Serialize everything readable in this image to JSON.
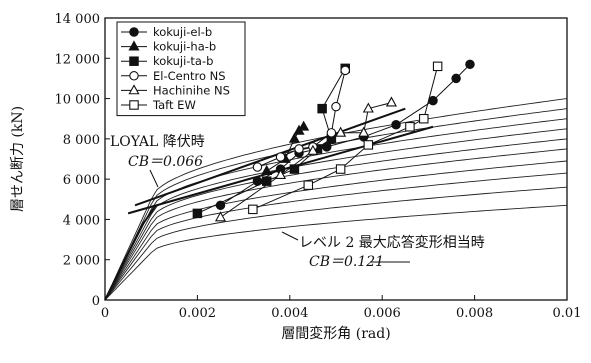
{
  "chart_data": {
    "type": "line",
    "xlabel": "層間変形角 (rad)",
    "ylabel": "層せん断力 (kN)",
    "xlim": [
      0,
      0.01
    ],
    "ylim": [
      0,
      14000
    ],
    "x_ticks": [
      0,
      0.002,
      0.004,
      0.006,
      0.008,
      0.01
    ],
    "x_tick_labels": [
      "0",
      "0.002",
      "0.004",
      "0.006",
      "0.008",
      "0.01"
    ],
    "y_ticks": [
      0,
      2000,
      4000,
      6000,
      8000,
      10000,
      12000,
      14000
    ],
    "y_tick_labels": [
      "0",
      "2 000",
      "4 000",
      "6 000",
      "8 000",
      "10 000",
      "12 000",
      "14 000"
    ],
    "legend_position": "top-left",
    "series": [
      {
        "name": "kokuji-el-b",
        "marker": "circle-filled",
        "points": [
          [
            0.0025,
            4700
          ],
          [
            0.0033,
            5900
          ],
          [
            0.0038,
            6500
          ],
          [
            0.0042,
            7300
          ],
          [
            0.0048,
            7600
          ],
          [
            0.0056,
            8100
          ],
          [
            0.0063,
            8700
          ],
          [
            0.0071,
            9900
          ],
          [
            0.0076,
            11000
          ],
          [
            0.0079,
            11700
          ]
        ]
      },
      {
        "name": "kokuji-ha-b",
        "marker": "triangle-filled",
        "points": [
          [
            0.0035,
            6400
          ],
          [
            0.0039,
            7000
          ],
          [
            0.0041,
            8000
          ],
          [
            0.0042,
            8400
          ],
          [
            0.0043,
            8600
          ]
        ]
      },
      {
        "name": "kokuji-ta-b",
        "marker": "square-filled",
        "points": [
          [
            0.002,
            4300
          ],
          [
            0.0035,
            5900
          ],
          [
            0.0041,
            6500
          ],
          [
            0.0046,
            7500
          ],
          [
            0.0049,
            8000
          ],
          [
            0.0047,
            9500
          ],
          [
            0.0052,
            11500
          ]
        ]
      },
      {
        "name": "El-Centro NS",
        "marker": "circle-open",
        "points": [
          [
            0.0033,
            6600
          ],
          [
            0.0038,
            7100
          ],
          [
            0.0042,
            7500
          ],
          [
            0.0045,
            7600
          ],
          [
            0.0049,
            8300
          ],
          [
            0.005,
            9600
          ],
          [
            0.0052,
            11400
          ]
        ]
      },
      {
        "name": "Hachinihe NS",
        "marker": "triangle-open",
        "points": [
          [
            0.0025,
            4100
          ],
          [
            0.0038,
            6200
          ],
          [
            0.0045,
            7400
          ],
          [
            0.0051,
            8300
          ],
          [
            0.0056,
            8300
          ],
          [
            0.0057,
            9500
          ],
          [
            0.0062,
            9800
          ]
        ]
      },
      {
        "name": "Taft EW",
        "marker": "square-open",
        "points": [
          [
            0.0032,
            4500
          ],
          [
            0.0044,
            5700
          ],
          [
            0.0051,
            6500
          ],
          [
            0.0057,
            7700
          ],
          [
            0.0066,
            8600
          ],
          [
            0.0069,
            9000
          ],
          [
            0.0072,
            11600
          ]
        ]
      }
    ],
    "background_curves_ratios": [
      0.47,
      0.56,
      0.63,
      0.69,
      0.75,
      0.8,
      0.85,
      0.9,
      0.95,
      1.0
    ],
    "background_curves_top": 10000,
    "annotations": [
      {
        "text": "LOYAL 降伏時",
        "italic": false
      },
      {
        "text": "CB＝0.066",
        "italic": true
      },
      {
        "text": "レベル 2 最大応答変形相当時",
        "italic": false
      },
      {
        "text": "CB＝0.121",
        "italic": true
      }
    ],
    "annotation_lines": [
      {
        "from": [
          0.0005,
          4300
        ],
        "to": [
          0.0071,
          8600
        ]
      },
      {
        "from": [
          0.00065,
          4700
        ],
        "to": [
          0.0065,
          9500
        ]
      }
    ]
  }
}
